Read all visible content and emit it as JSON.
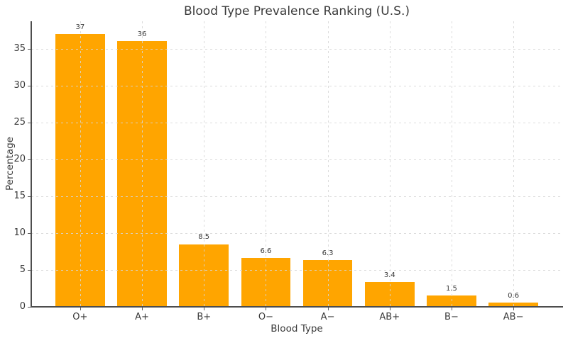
{
  "chart_data": {
    "type": "bar",
    "title": "Blood Type Prevalence Ranking (U.S.)",
    "xlabel": "Blood Type",
    "ylabel": "Percentage",
    "categories": [
      "O+",
      "A+",
      "B+",
      "O−",
      "A−",
      "AB+",
      "B−",
      "AB−"
    ],
    "values": [
      37,
      36,
      8.5,
      6.6,
      6.3,
      3.4,
      1.5,
      0.6
    ],
    "value_labels": [
      "37",
      "36",
      "8.5",
      "6.6",
      "6.3",
      "3.4",
      "1.5",
      "0.6"
    ],
    "yticks": [
      0,
      5,
      10,
      15,
      20,
      25,
      30,
      35
    ],
    "ylim": [
      0,
      38.7
    ],
    "xlim": [
      -0.79,
      7.79
    ],
    "bar_width_units": 0.8,
    "grid": {
      "visible": true,
      "style": "dashed",
      "axes": "both",
      "over_bars": true
    },
    "legend": null,
    "colors": {
      "bar": "#FFA500",
      "text": "#3a3a3a",
      "spine": "#4d4d4d",
      "tick": "#606060",
      "gridline": "#d6d6d6",
      "background": "#ffffff"
    }
  }
}
